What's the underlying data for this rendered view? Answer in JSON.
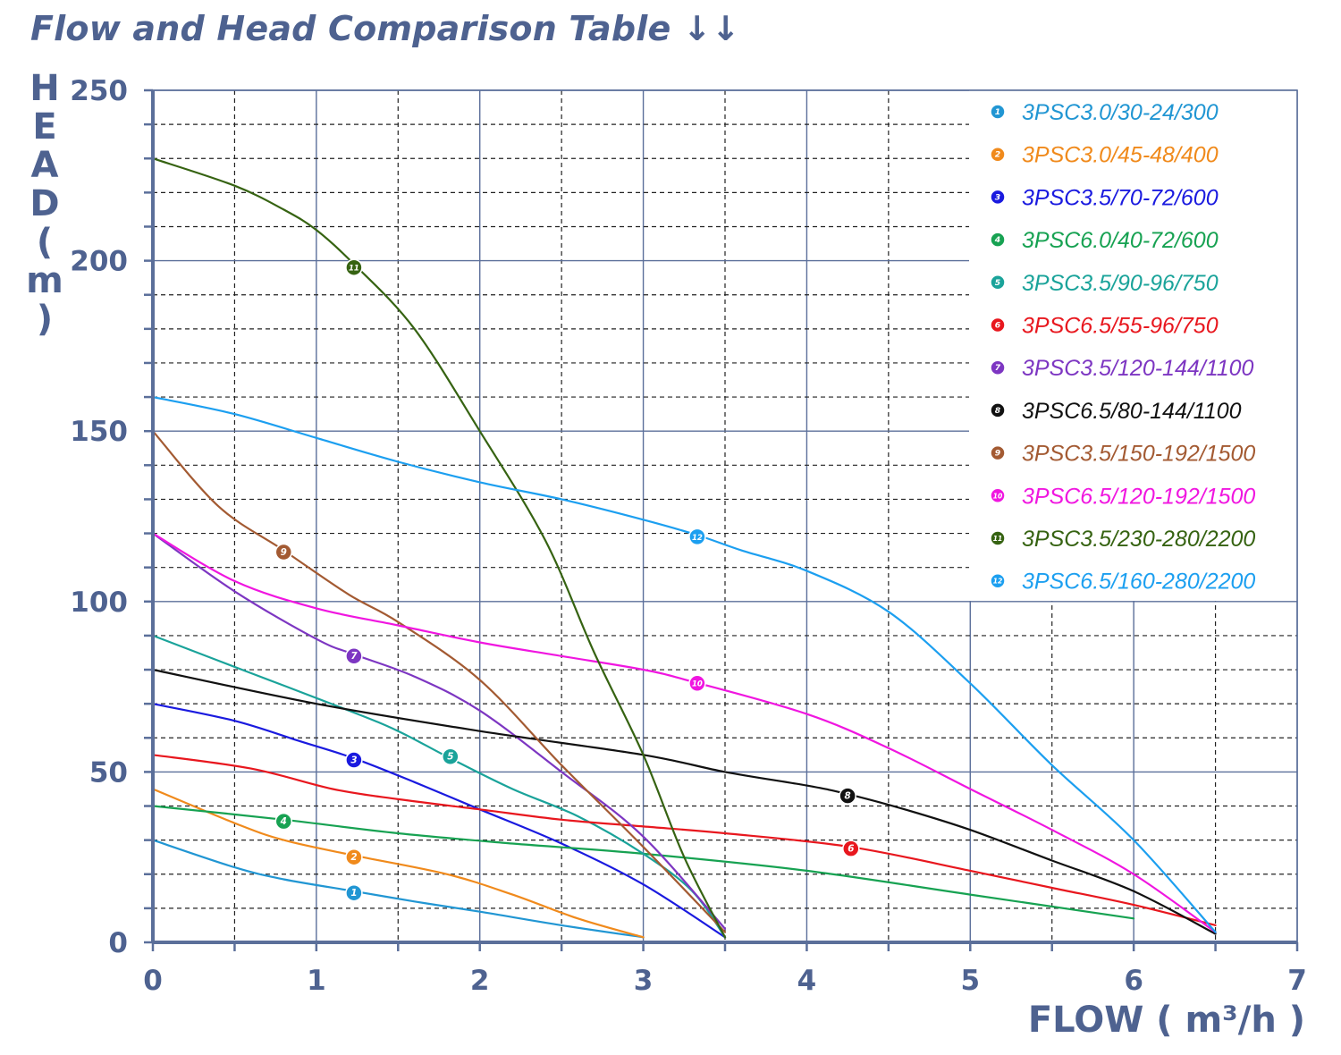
{
  "title": "Flow and Head Comparison Table ↓↓",
  "chart_data": {
    "type": "line",
    "title": "Flow and Head Comparison Table ↓↓",
    "ylabel": "HEAD ( m )",
    "ylabel_chars": [
      "H",
      "E",
      "A",
      "D",
      "(",
      "m",
      ")"
    ],
    "xlabel": "FLOW ( m³/h )",
    "xlim": [
      0,
      7
    ],
    "ylim": [
      0,
      250
    ],
    "x_ticks": [
      "0",
      "1",
      "2",
      "3",
      "4",
      "5",
      "6",
      "7"
    ],
    "y_ticks": [
      "0",
      "50",
      "100",
      "150",
      "200",
      "250"
    ],
    "grid": true,
    "legend_position": "top-right",
    "axis_color": "#5b6f9a",
    "series": [
      {
        "id": "1",
        "name": "3PSC3.0/30-24/300",
        "color": "#2196d3",
        "points": [
          [
            0,
            30
          ],
          [
            0.5,
            22
          ],
          [
            0.8,
            18.5
          ],
          [
            1.23,
            15
          ],
          [
            1.6,
            12
          ],
          [
            2,
            9
          ],
          [
            2.5,
            5
          ],
          [
            3,
            1.5
          ]
        ],
        "marker": [
          1.23,
          14.5
        ]
      },
      {
        "id": "2",
        "name": "3PSC3.0/45-48/400",
        "color": "#f08a1c",
        "points": [
          [
            0,
            45
          ],
          [
            0.5,
            35
          ],
          [
            0.8,
            30
          ],
          [
            1.23,
            25.5
          ],
          [
            1.8,
            20
          ],
          [
            2.2,
            14
          ],
          [
            2.6,
            7
          ],
          [
            3,
            1.5
          ]
        ],
        "marker": [
          1.23,
          25
        ]
      },
      {
        "id": "3",
        "name": "3PSC3.5/70-72/600",
        "color": "#1a1adf",
        "points": [
          [
            0,
            70
          ],
          [
            0.5,
            65
          ],
          [
            0.9,
            59
          ],
          [
            1.23,
            54
          ],
          [
            1.6,
            47
          ],
          [
            2,
            39
          ],
          [
            2.5,
            29
          ],
          [
            3,
            17
          ],
          [
            3.5,
            1.5
          ]
        ],
        "marker": [
          1.23,
          53.5
        ]
      },
      {
        "id": "4",
        "name": "3PSC6.0/40-72/600",
        "color": "#17a252",
        "points": [
          [
            0,
            40
          ],
          [
            0.8,
            36
          ],
          [
            1.5,
            32
          ],
          [
            2.2,
            29
          ],
          [
            3,
            26
          ],
          [
            4,
            21
          ],
          [
            5,
            14
          ],
          [
            6,
            7
          ]
        ],
        "marker": [
          0.8,
          35.5
        ]
      },
      {
        "id": "5",
        "name": "3PSC3.5/90-96/750",
        "color": "#1aa39a",
        "points": [
          [
            0,
            90
          ],
          [
            0.6,
            79
          ],
          [
            1.2,
            68
          ],
          [
            1.5,
            62
          ],
          [
            1.82,
            54
          ],
          [
            2.2,
            45
          ],
          [
            2.6,
            37
          ],
          [
            3,
            26
          ],
          [
            3.3,
            15
          ],
          [
            3.5,
            1.5
          ]
        ],
        "marker": [
          1.82,
          54.5
        ]
      },
      {
        "id": "6",
        "name": "3PSC6.5/55-96/750",
        "color": "#e8171e",
        "points": [
          [
            0,
            55
          ],
          [
            0.6,
            51
          ],
          [
            1.1,
            45
          ],
          [
            1.5,
            42
          ],
          [
            2,
            39
          ],
          [
            2.5,
            36
          ],
          [
            3,
            34
          ],
          [
            3.5,
            32
          ],
          [
            4.27,
            28
          ],
          [
            5,
            21
          ],
          [
            5.5,
            16
          ],
          [
            6,
            11
          ],
          [
            6.5,
            5
          ]
        ],
        "marker": [
          4.27,
          27.5
        ]
      },
      {
        "id": "7",
        "name": "3PSC3.5/120-144/1100",
        "color": "#7d36c2",
        "points": [
          [
            0,
            120
          ],
          [
            0.5,
            103
          ],
          [
            1,
            89
          ],
          [
            1.23,
            84.5
          ],
          [
            1.6,
            78
          ],
          [
            2,
            68
          ],
          [
            2.5,
            50
          ],
          [
            3,
            31
          ],
          [
            3.5,
            4
          ]
        ],
        "marker": [
          1.23,
          84
        ]
      },
      {
        "id": "8",
        "name": "3PSC6.5/80-144/1100",
        "color": "#111111",
        "points": [
          [
            0,
            80
          ],
          [
            1,
            70
          ],
          [
            2,
            62
          ],
          [
            3,
            55
          ],
          [
            3.5,
            50
          ],
          [
            4,
            46
          ],
          [
            4.25,
            43.5
          ],
          [
            4.6,
            39
          ],
          [
            5,
            33
          ],
          [
            5.5,
            24
          ],
          [
            6,
            15
          ],
          [
            6.5,
            2.5
          ]
        ],
        "marker": [
          4.25,
          43
        ]
      },
      {
        "id": "9",
        "name": "3PSC3.5/150-192/1500",
        "color": "#a35a32",
        "points": [
          [
            0,
            150
          ],
          [
            0.4,
            128
          ],
          [
            0.8,
            115
          ],
          [
            1.2,
            102
          ],
          [
            1.5,
            94
          ],
          [
            2,
            77
          ],
          [
            2.5,
            52
          ],
          [
            3,
            28
          ],
          [
            3.5,
            3
          ]
        ],
        "marker": [
          0.8,
          114.5
        ]
      },
      {
        "id": "10",
        "name": "3PSC6.5/120-192/1500",
        "color": "#f016e0",
        "points": [
          [
            0,
            120
          ],
          [
            0.5,
            106
          ],
          [
            1,
            98
          ],
          [
            1.5,
            93
          ],
          [
            2,
            88
          ],
          [
            2.5,
            84
          ],
          [
            3,
            80
          ],
          [
            3.3,
            76.5
          ],
          [
            4,
            67
          ],
          [
            4.5,
            57
          ],
          [
            5,
            45
          ],
          [
            5.5,
            33
          ],
          [
            6,
            20
          ],
          [
            6.5,
            3
          ]
        ],
        "marker": [
          3.33,
          76
        ]
      },
      {
        "id": "11",
        "name": "3PSC3.5/230-280/2200",
        "color": "#366312",
        "points": [
          [
            0,
            230
          ],
          [
            0.5,
            222
          ],
          [
            0.8,
            215
          ],
          [
            1,
            209
          ],
          [
            1.23,
            199
          ],
          [
            1.6,
            180
          ],
          [
            2,
            150
          ],
          [
            2.4,
            118
          ],
          [
            2.7,
            85
          ],
          [
            3,
            55
          ],
          [
            3.25,
            25
          ],
          [
            3.5,
            1.5
          ]
        ],
        "marker": [
          1.23,
          198
        ]
      },
      {
        "id": "12",
        "name": "3PSC6.5/160-280/2200",
        "color": "#1c9ff0",
        "points": [
          [
            0,
            160
          ],
          [
            0.5,
            155
          ],
          [
            1,
            148
          ],
          [
            1.5,
            141
          ],
          [
            2,
            135
          ],
          [
            2.5,
            130
          ],
          [
            3,
            124
          ],
          [
            3.33,
            119.5
          ],
          [
            3.6,
            115
          ],
          [
            4,
            109
          ],
          [
            4.5,
            97
          ],
          [
            5,
            76
          ],
          [
            5.5,
            52
          ],
          [
            6,
            30
          ],
          [
            6.5,
            3
          ]
        ],
        "marker": [
          3.33,
          119
        ]
      }
    ]
  }
}
